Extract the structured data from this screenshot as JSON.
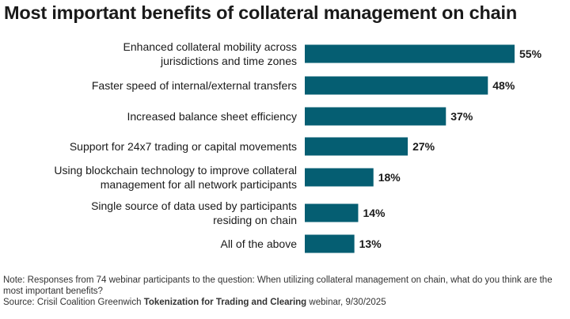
{
  "title": "Most important benefits of collateral management on chain",
  "colors": {
    "bar": "#055e72",
    "text": "#1a1a1a"
  },
  "chart_data": {
    "type": "bar",
    "orientation": "horizontal",
    "title": "Most important benefits of collateral management on chain",
    "categories": [
      [
        "Enhanced collateral mobility across",
        "jurisdictions and time zones"
      ],
      [
        "Faster speed of internal/external transfers"
      ],
      [
        "Increased balance sheet efficiency"
      ],
      [
        "Support for 24x7 trading or capital movements"
      ],
      [
        "Using blockchain technology to improve collateral",
        "management for all network participants"
      ],
      [
        "Single source of data used by participants",
        "residing on chain"
      ],
      [
        "All of the above"
      ]
    ],
    "values": [
      55,
      48,
      37,
      27,
      18,
      14,
      13
    ],
    "value_labels": [
      "55%",
      "48%",
      "37%",
      "27%",
      "18%",
      "14%",
      "13%"
    ],
    "unit": "%",
    "xlim": [
      0,
      55
    ],
    "grid": false,
    "legend": "none"
  },
  "note": "Note: Responses from 74 webinar participants to the question: When utilizing collateral management on chain, what do you think are the most important benefits?",
  "source_prefix": "Source: Crisil Coalition Greenwich ",
  "source_title": "Tokenization for Trading and Clearing",
  "source_suffix": " webinar, 9/30/2025"
}
